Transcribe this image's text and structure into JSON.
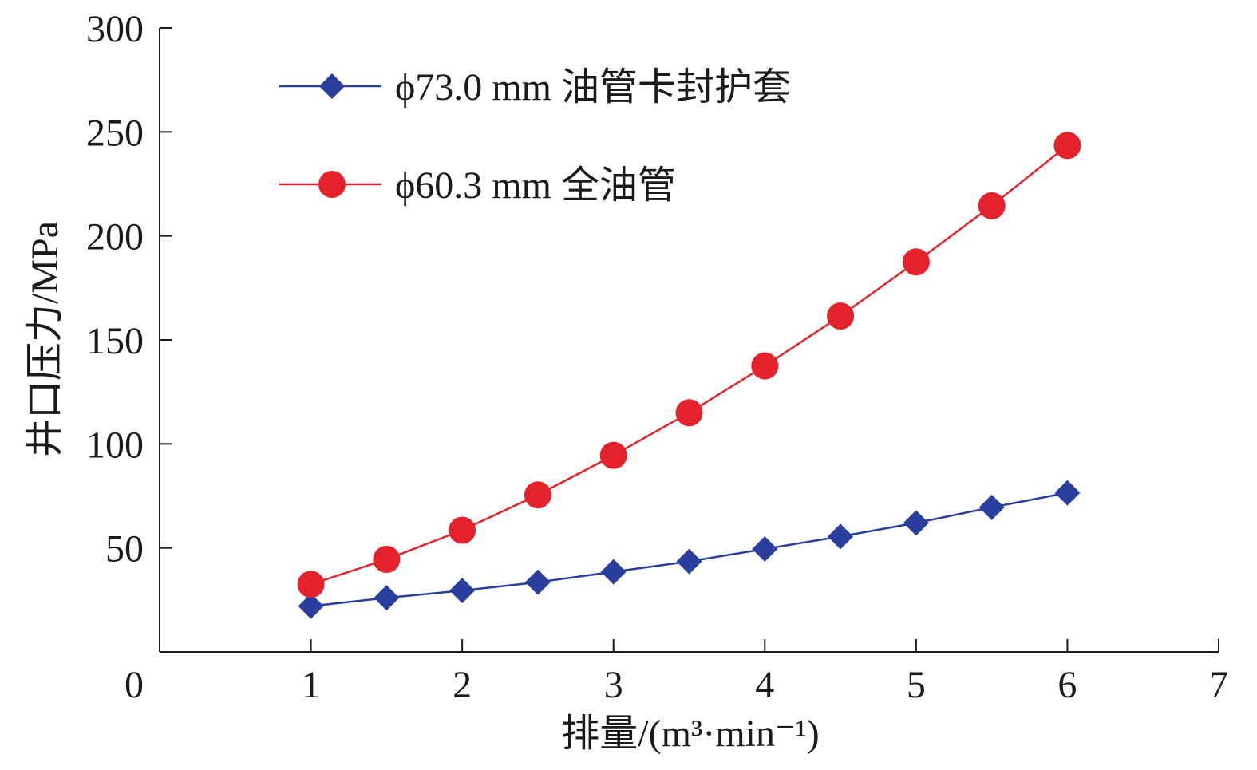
{
  "chart_data": {
    "type": "line",
    "xlabel": "排量/(m³·min⁻¹)",
    "ylabel": "井口压力/MPa",
    "xlim": [
      0,
      7
    ],
    "ylim": [
      0,
      300
    ],
    "xticks": [
      0,
      1,
      2,
      3,
      4,
      5,
      6,
      7
    ],
    "yticks": [
      50,
      100,
      150,
      200,
      250,
      300
    ],
    "legend_position": "top-left",
    "series": [
      {
        "name": "ϕ73.0 mm 油管卡封护套",
        "color": "#2a3f9d",
        "marker": "diamond",
        "x": [
          1,
          1.5,
          2,
          2.5,
          3,
          3.5,
          4,
          4.5,
          5,
          5.5,
          6
        ],
        "y": [
          22,
          26,
          29.5,
          33.5,
          38.5,
          43.5,
          49.5,
          55.5,
          62,
          69.5,
          76.5
        ]
      },
      {
        "name": "ϕ60.3 mm 全油管",
        "color": "#e3222b",
        "marker": "circle",
        "x": [
          1,
          1.5,
          2,
          2.5,
          3,
          3.5,
          4,
          4.5,
          5,
          5.5,
          6
        ],
        "y": [
          32.5,
          44.5,
          58.5,
          75.5,
          94.5,
          115,
          137.5,
          161.5,
          187.5,
          214.5,
          243.5
        ]
      }
    ]
  }
}
